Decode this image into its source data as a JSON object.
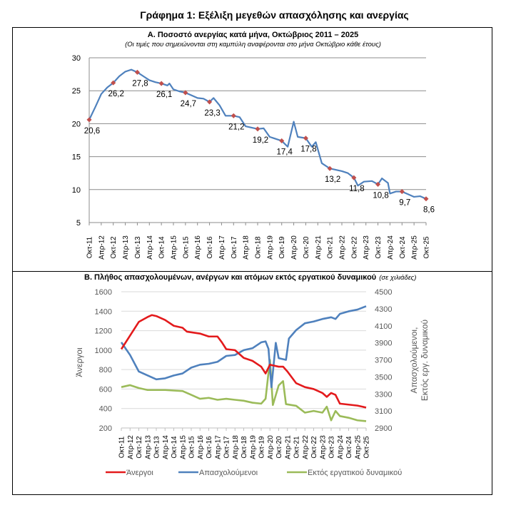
{
  "main_title": "Γράφημα 1: Εξέλιξη μεγεθών απασχόλησης και ανεργίας",
  "x_tick_labels": [
    "Οκτ-11",
    "Απρ-12",
    "Οκτ-12",
    "Απρ-13",
    "Οκτ-13",
    "Απρ-14",
    "Οκτ-14",
    "Απρ-15",
    "Οκτ-15",
    "Απρ-16",
    "Οκτ-16",
    "Απρ-17",
    "Οκτ-17",
    "Απρ-18",
    "Οκτ-18",
    "Απρ-19",
    "Οκτ-19",
    "Απρ-20",
    "Οκτ-20",
    "Απρ-21",
    "Οκτ-21",
    "Απρ-22",
    "Οκτ-22",
    "Απρ-23",
    "Οκτ-23",
    "Απρ-24",
    "Οκτ-24",
    "Απρ-25",
    "Οκτ-25"
  ],
  "chart_data": [
    {
      "type": "line",
      "title": "Α. Ποσοστό ανεργίας κατά μήνα, Οκτώβριος 2011 – 2025",
      "subtitle": "(Οι τιμές που σημειώνονται στη καμπύλη αναφέρονται στο μήνα Οκτώβριο κάθε έτους)",
      "xlabel": "",
      "ylabel": "",
      "ylim": [
        5,
        30
      ],
      "yticks": [
        5,
        10,
        15,
        20,
        25,
        30
      ],
      "grid": true,
      "line_color": "#4f81bd",
      "marker_color": "#c0504d",
      "series": [
        {
          "x": [
            "2011-10",
            "2012-01",
            "2012-04",
            "2012-07",
            "2012-10",
            "2013-01",
            "2013-04",
            "2013-07",
            "2013-10",
            "2014-01",
            "2014-04",
            "2014-07",
            "2014-10",
            "2015-01",
            "2015-02",
            "2015-04",
            "2015-07",
            "2015-10",
            "2016-01",
            "2016-04",
            "2016-07",
            "2016-10",
            "2016-12",
            "2017-03",
            "2017-06",
            "2017-10",
            "2018-01",
            "2018-04",
            "2018-10",
            "2019-01",
            "2019-04",
            "2019-10",
            "2020-01",
            "2020-04",
            "2020-06",
            "2020-10",
            "2021-01",
            "2021-03",
            "2021-06",
            "2021-10",
            "2022-01",
            "2022-04",
            "2022-07",
            "2022-10",
            "2022-12",
            "2023-03",
            "2023-07",
            "2023-10",
            "2023-12",
            "2024-03",
            "2024-04",
            "2024-07",
            "2024-10",
            "2025-01",
            "2025-04",
            "2025-07",
            "2025-10"
          ],
          "values": [
            20.6,
            22.5,
            24.5,
            25.5,
            26.2,
            27.2,
            27.9,
            28.2,
            27.8,
            27.2,
            26.6,
            26.3,
            26.1,
            25.8,
            26.1,
            25.2,
            24.9,
            24.7,
            24.3,
            23.9,
            23.8,
            23.3,
            23.9,
            22.8,
            21.2,
            21.2,
            21.0,
            19.6,
            19.2,
            19.3,
            18.0,
            17.4,
            16.5,
            20.3,
            18.0,
            17.8,
            16.5,
            17.2,
            14.0,
            13.2,
            13.0,
            12.8,
            12.5,
            11.8,
            10.6,
            11.2,
            11.3,
            10.8,
            11.7,
            11.0,
            9.4,
            9.7,
            9.7,
            9.3,
            8.9,
            9.0,
            8.6
          ]
        }
      ],
      "data_labels": [
        {
          "x": "2011-10",
          "value": 20.6,
          "label": "20,6"
        },
        {
          "x": "2012-10",
          "value": 26.2,
          "label": "26,2"
        },
        {
          "x": "2013-10",
          "value": 27.8,
          "label": "27,8"
        },
        {
          "x": "2014-10",
          "value": 26.1,
          "label": "26,1"
        },
        {
          "x": "2015-10",
          "value": 24.7,
          "label": "24,7"
        },
        {
          "x": "2016-10",
          "value": 23.3,
          "label": "23,3"
        },
        {
          "x": "2017-10",
          "value": 21.2,
          "label": "21,2"
        },
        {
          "x": "2018-10",
          "value": 19.2,
          "label": "19,2"
        },
        {
          "x": "2019-10",
          "value": 17.4,
          "label": "17,4"
        },
        {
          "x": "2020-10",
          "value": 17.8,
          "label": "17,8"
        },
        {
          "x": "2021-10",
          "value": 13.2,
          "label": "13,2"
        },
        {
          "x": "2022-10",
          "value": 11.8,
          "label": "11,8"
        },
        {
          "x": "2023-10",
          "value": 10.8,
          "label": "10,8"
        },
        {
          "x": "2024-10",
          "value": 9.7,
          "label": "9,7"
        },
        {
          "x": "2025-10",
          "value": 8.6,
          "label": "8,6"
        }
      ]
    },
    {
      "type": "line",
      "title": "Β. Πλήθος απασχολουμένων, ανέργων και ατόμων εκτός εργατικού δυναμικού",
      "unit_note": "(σε χιλιάδες)",
      "ylabel_left": "Άνεργοι",
      "ylabel_right_line1": "Απασχολούμενοι,",
      "ylabel_right_line2": "Εκτός εργ. δυναμικού",
      "ylim_left": [
        200,
        1600
      ],
      "yticks_left": [
        200,
        400,
        600,
        800,
        1000,
        1200,
        1400,
        1600
      ],
      "ylim_right": [
        2900,
        4500
      ],
      "yticks_right": [
        2900,
        3100,
        3300,
        3500,
        3700,
        3900,
        4100,
        4300,
        4500
      ],
      "grid": true,
      "legend_position": "bottom",
      "series": [
        {
          "name": "Άνεργοι",
          "axis": "left",
          "color": "#e31a1c",
          "x": [
            "2011-10",
            "2012-04",
            "2012-10",
            "2013-04",
            "2013-07",
            "2013-10",
            "2014-04",
            "2014-10",
            "2015-04",
            "2015-07",
            "2016-04",
            "2016-10",
            "2017-04",
            "2017-07",
            "2017-10",
            "2018-04",
            "2018-10",
            "2019-04",
            "2019-10",
            "2020-01",
            "2020-04",
            "2020-10",
            "2021-01",
            "2021-04",
            "2021-10",
            "2022-04",
            "2022-10",
            "2023-04",
            "2023-07",
            "2023-10",
            "2024-01",
            "2024-04",
            "2024-10",
            "2025-04",
            "2025-10"
          ],
          "values": [
            1010,
            1150,
            1290,
            1340,
            1360,
            1350,
            1310,
            1250,
            1230,
            1190,
            1170,
            1140,
            1140,
            1080,
            1010,
            1000,
            920,
            890,
            830,
            760,
            850,
            830,
            830,
            780,
            660,
            620,
            600,
            560,
            520,
            560,
            540,
            450,
            440,
            430,
            410
          ]
        },
        {
          "name": "Απασχολούμενοι",
          "axis": "right",
          "color": "#4f81bd",
          "x": [
            "2011-10",
            "2012-04",
            "2012-10",
            "2013-04",
            "2013-10",
            "2014-04",
            "2014-10",
            "2015-04",
            "2015-10",
            "2016-04",
            "2016-10",
            "2017-04",
            "2017-10",
            "2018-04",
            "2018-10",
            "2019-04",
            "2019-10",
            "2020-01",
            "2020-03",
            "2020-05",
            "2020-08",
            "2020-10",
            "2021-03",
            "2021-05",
            "2021-10",
            "2022-04",
            "2022-10",
            "2023-04",
            "2023-10",
            "2024-01",
            "2024-04",
            "2024-10",
            "2025-04",
            "2025-10"
          ],
          "values": [
            3906,
            3757,
            3563,
            3517,
            3471,
            3483,
            3517,
            3540,
            3609,
            3643,
            3654,
            3677,
            3746,
            3757,
            3814,
            3837,
            3906,
            3917,
            3830,
            3378,
            3900,
            3720,
            3700,
            3950,
            4050,
            4130,
            4150,
            4180,
            4200,
            4180,
            4240,
            4270,
            4290,
            4330
          ]
        },
        {
          "name": "Εκτός εργατικού δυναμικού",
          "axis": "right",
          "color": "#9bbb59",
          "x": [
            "2011-10",
            "2012-04",
            "2012-10",
            "2013-04",
            "2014-04",
            "2015-04",
            "2015-10",
            "2016-04",
            "2016-10",
            "2017-04",
            "2017-10",
            "2018-04",
            "2018-10",
            "2019-04",
            "2019-10",
            "2020-01",
            "2020-04",
            "2020-06",
            "2020-10",
            "2021-01",
            "2021-03",
            "2021-10",
            "2022-04",
            "2022-10",
            "2023-04",
            "2023-07",
            "2023-10",
            "2024-01",
            "2024-04",
            "2024-10",
            "2025-04",
            "2025-10"
          ],
          "values": [
            3380,
            3403,
            3369,
            3346,
            3346,
            3334,
            3289,
            3243,
            3254,
            3231,
            3243,
            3231,
            3220,
            3197,
            3186,
            3243,
            3700,
            3170,
            3400,
            3450,
            3180,
            3160,
            3080,
            3100,
            3080,
            3150,
            2990,
            3100,
            3040,
            3020,
            2990,
            2980
          ]
        }
      ]
    }
  ]
}
